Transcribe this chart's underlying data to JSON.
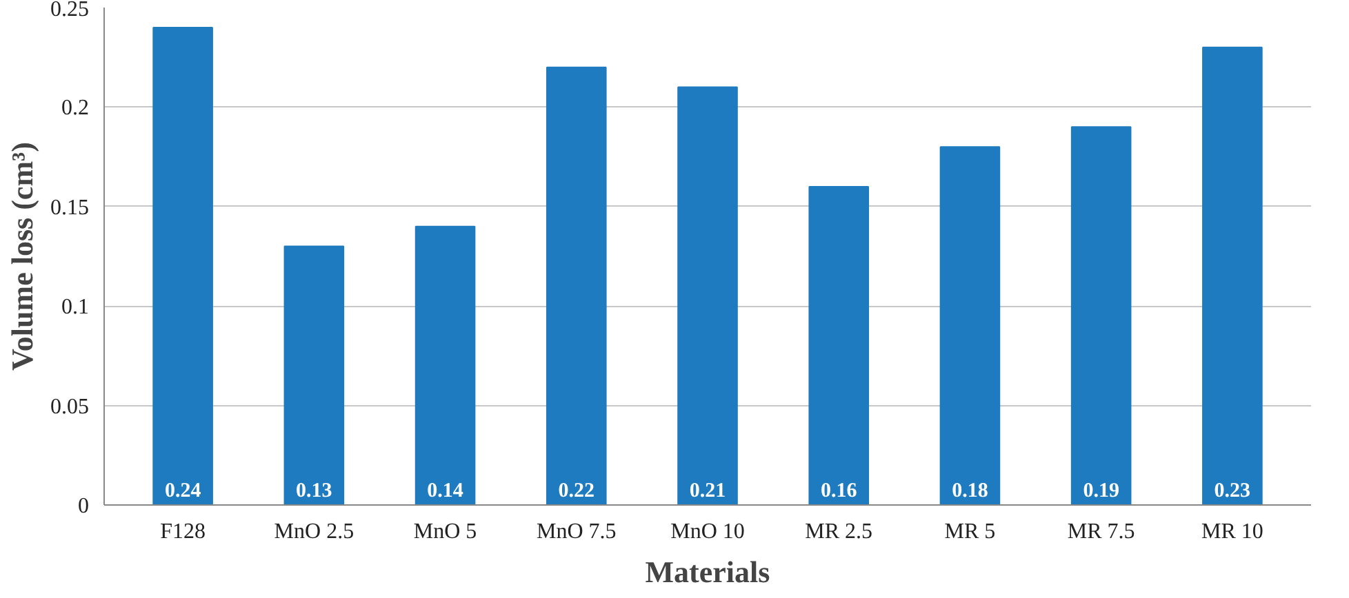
{
  "chart_data": {
    "type": "bar",
    "xlabel": "Materials",
    "ylabel": "Volume loss (cm³)",
    "categories": [
      "F128",
      "MnO 2.5",
      "MnO 5",
      "MnO 7.5",
      "MnO 10",
      "MR 2.5",
      "MR 5",
      "MR 7.5",
      "MR 10"
    ],
    "values": [
      0.24,
      0.13,
      0.14,
      0.22,
      0.21,
      0.16,
      0.18,
      0.19,
      0.23
    ],
    "color": "#1f7bbf",
    "ylim": [
      0,
      0.25
    ],
    "yticks": [
      0,
      0.05,
      0.1,
      0.15,
      0.2,
      0.25
    ],
    "grid": "y",
    "data_labels": true
  }
}
